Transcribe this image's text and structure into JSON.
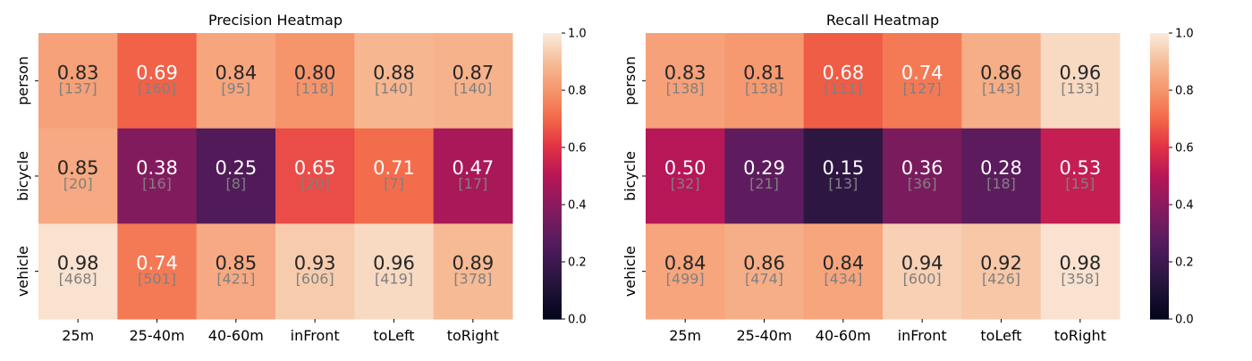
{
  "chart_data": [
    {
      "type": "heatmap",
      "title": "Precision Heatmap",
      "x_categories": [
        "25m",
        "25-40m",
        "40-60m",
        "inFront",
        "toLeft",
        "toRight"
      ],
      "y_categories": [
        "person",
        "bicycle",
        "vehicle"
      ],
      "values": [
        [
          0.83,
          0.69,
          0.84,
          0.8,
          0.88,
          0.87
        ],
        [
          0.85,
          0.38,
          0.25,
          0.65,
          0.71,
          0.47
        ],
        [
          0.98,
          0.74,
          0.85,
          0.93,
          0.96,
          0.89
        ]
      ],
      "value_labels": [
        [
          "0.83",
          "0.69",
          "0.84",
          "0.80",
          "0.88",
          "0.87"
        ],
        [
          "0.85",
          "0.38",
          "0.25",
          "0.65",
          "0.71",
          "0.47"
        ],
        [
          "0.98",
          "0.74",
          "0.85",
          "0.93",
          "0.96",
          "0.89"
        ]
      ],
      "count_labels": [
        [
          "[137]",
          "[160]",
          "[95]",
          "[118]",
          "[140]",
          "[140]"
        ],
        [
          "[20]",
          "[16]",
          "[8]",
          "[20]",
          "[7]",
          "[17]"
        ],
        [
          "[468]",
          "[501]",
          "[421]",
          "[606]",
          "[419]",
          "[378]"
        ]
      ],
      "colorbar": {
        "range": [
          0,
          1
        ],
        "ticks": [
          "0.0",
          "0.2",
          "0.4",
          "0.6",
          "0.8",
          "1.0"
        ]
      },
      "colormap": "rocket"
    },
    {
      "type": "heatmap",
      "title": "Recall Heatmap",
      "x_categories": [
        "25m",
        "25-40m",
        "40-60m",
        "inFront",
        "toLeft",
        "toRight"
      ],
      "y_categories": [
        "person",
        "bicycle",
        "vehicle"
      ],
      "values": [
        [
          0.83,
          0.81,
          0.68,
          0.74,
          0.86,
          0.96
        ],
        [
          0.5,
          0.29,
          0.15,
          0.36,
          0.28,
          0.53
        ],
        [
          0.84,
          0.86,
          0.84,
          0.94,
          0.92,
          0.98
        ]
      ],
      "value_labels": [
        [
          "0.83",
          "0.81",
          "0.68",
          "0.74",
          "0.86",
          "0.96"
        ],
        [
          "0.50",
          "0.29",
          "0.15",
          "0.36",
          "0.28",
          "0.53"
        ],
        [
          "0.84",
          "0.86",
          "0.84",
          "0.94",
          "0.92",
          "0.98"
        ]
      ],
      "count_labels": [
        [
          "[138]",
          "[138]",
          "[111]",
          "[127]",
          "[143]",
          "[133]"
        ],
        [
          "[32]",
          "[21]",
          "[13]",
          "[36]",
          "[18]",
          "[15]"
        ],
        [
          "[499]",
          "[474]",
          "[434]",
          "[600]",
          "[426]",
          "[358]"
        ]
      ],
      "colorbar": {
        "range": [
          0,
          1
        ],
        "ticks": [
          "0.0",
          "0.2",
          "0.4",
          "0.6",
          "0.8",
          "1.0"
        ]
      },
      "colormap": "rocket"
    }
  ]
}
